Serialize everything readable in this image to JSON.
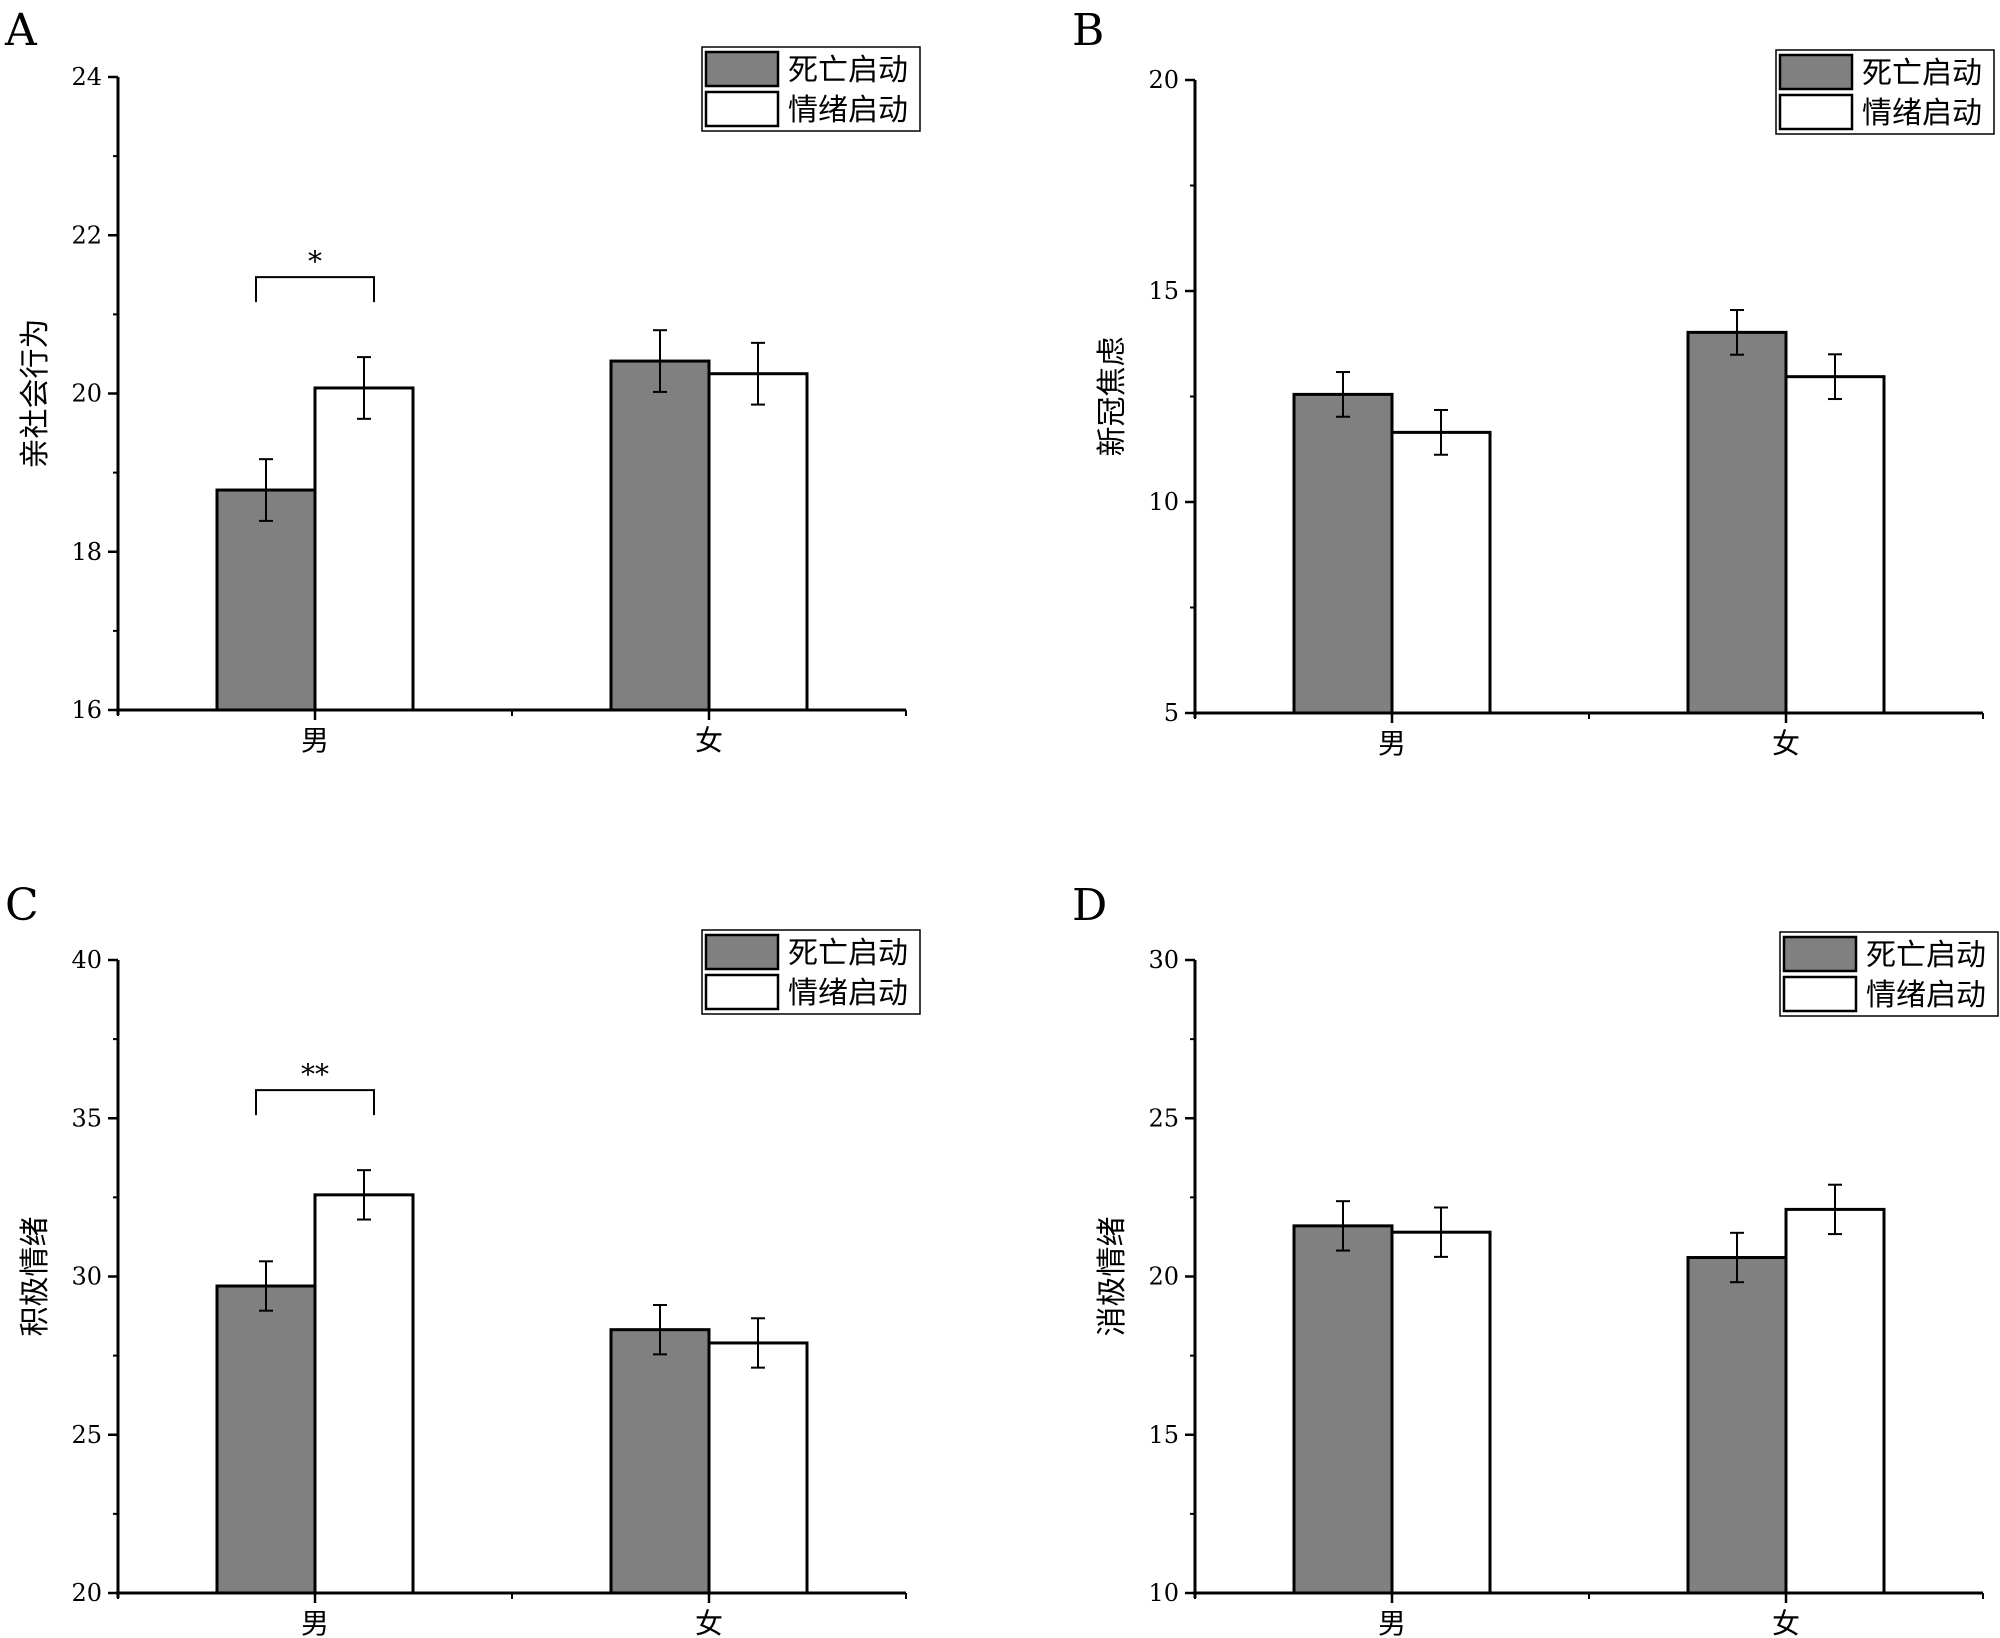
{
  "colors": {
    "death": "#808080",
    "emotion": "#ffffff",
    "axis": "#000000"
  },
  "chart_data": [
    {
      "type": "bar",
      "panel_label": "A",
      "ylabel": "亲社会行为",
      "categories": [
        "男",
        "女"
      ],
      "ylim": [
        16,
        24
      ],
      "yticks": [
        16,
        18,
        20,
        22,
        24
      ],
      "series": [
        {
          "name": "死亡启动",
          "values": [
            18.78,
            20.41
          ],
          "errors": [
            0.39,
            0.39
          ]
        },
        {
          "name": "情绪启动",
          "values": [
            20.07,
            20.25
          ],
          "errors": [
            0.39,
            0.39
          ]
        }
      ],
      "significance": [
        {
          "category": "男",
          "label": "*"
        }
      ],
      "legend": "top-right"
    },
    {
      "type": "bar",
      "panel_label": "B",
      "ylabel": "新冠焦虑",
      "categories": [
        "男",
        "女"
      ],
      "ylim": [
        5,
        20
      ],
      "yticks": [
        5,
        10,
        15,
        20
      ],
      "series": [
        {
          "name": "死亡启动",
          "values": [
            12.55,
            14.02
          ],
          "errors": [
            0.53,
            0.53
          ]
        },
        {
          "name": "情绪启动",
          "values": [
            11.65,
            12.97
          ],
          "errors": [
            0.53,
            0.53
          ]
        }
      ],
      "significance": [],
      "legend": "top-right"
    },
    {
      "type": "bar",
      "panel_label": "C",
      "ylabel": "积极情绪",
      "categories": [
        "男",
        "女"
      ],
      "ylim": [
        20,
        40
      ],
      "yticks": [
        20,
        25,
        30,
        35,
        40
      ],
      "series": [
        {
          "name": "死亡启动",
          "values": [
            29.7,
            28.32
          ],
          "errors": [
            0.78,
            0.78
          ]
        },
        {
          "name": "情绪启动",
          "values": [
            32.58,
            27.9
          ],
          "errors": [
            0.78,
            0.78
          ]
        }
      ],
      "significance": [
        {
          "category": "男",
          "label": "**"
        }
      ],
      "legend": "top-right"
    },
    {
      "type": "bar",
      "panel_label": "D",
      "ylabel": "消极情绪",
      "categories": [
        "男",
        "女"
      ],
      "ylim": [
        10,
        30
      ],
      "yticks": [
        10,
        15,
        20,
        25,
        30
      ],
      "series": [
        {
          "name": "死亡启动",
          "values": [
            21.6,
            20.6
          ],
          "errors": [
            0.78,
            0.78
          ]
        },
        {
          "name": "情绪启动",
          "values": [
            21.4,
            22.12
          ],
          "errors": [
            0.78,
            0.78
          ]
        }
      ],
      "significance": [],
      "legend": "top-right"
    }
  ]
}
